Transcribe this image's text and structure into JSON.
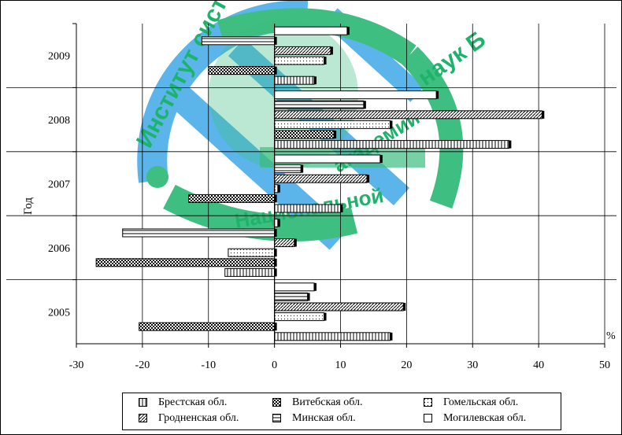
{
  "chart_data": {
    "type": "bar",
    "orientation": "horizontal",
    "categories": [
      "2005",
      "2006",
      "2007",
      "2008",
      "2009"
    ],
    "xlabel": "%",
    "ylabel": "Год",
    "xlim": [
      -30,
      50
    ],
    "xticks": [
      -30,
      -20,
      -10,
      0,
      10,
      20,
      30,
      40,
      50
    ],
    "grid": true,
    "legend_position": "bottom",
    "series": [
      {
        "name": "Брестская обл.",
        "pattern": "vertical-lines",
        "values": [
          17.5,
          -7.5,
          10,
          35.5,
          6
        ]
      },
      {
        "name": "Витебская обл.",
        "pattern": "checker",
        "values": [
          -20.5,
          -27,
          -13,
          9,
          -10
        ]
      },
      {
        "name": "Гомельская обл.",
        "pattern": "dots",
        "values": [
          7.5,
          -7,
          0.5,
          17.5,
          7.5
        ]
      },
      {
        "name": "Гродненская обл.",
        "pattern": "diagonal-lines",
        "values": [
          19.5,
          3,
          14,
          40.5,
          8.5
        ]
      },
      {
        "name": "Минская обл.",
        "pattern": "horizontal-lines",
        "values": [
          5,
          -23,
          4,
          13.5,
          -11
        ]
      },
      {
        "name": "Могилевская обл.",
        "pattern": "none",
        "values": [
          6,
          0.5,
          16,
          24.5,
          11
        ]
      }
    ]
  },
  "watermark": {
    "top_text": "Институт систем",
    "side_text": "наук Б",
    "arc_text": "академии",
    "bottom_text": "Национальной"
  },
  "colors": {
    "watermark_blue": "#3fa9e8",
    "watermark_green": "#1db36b"
  }
}
